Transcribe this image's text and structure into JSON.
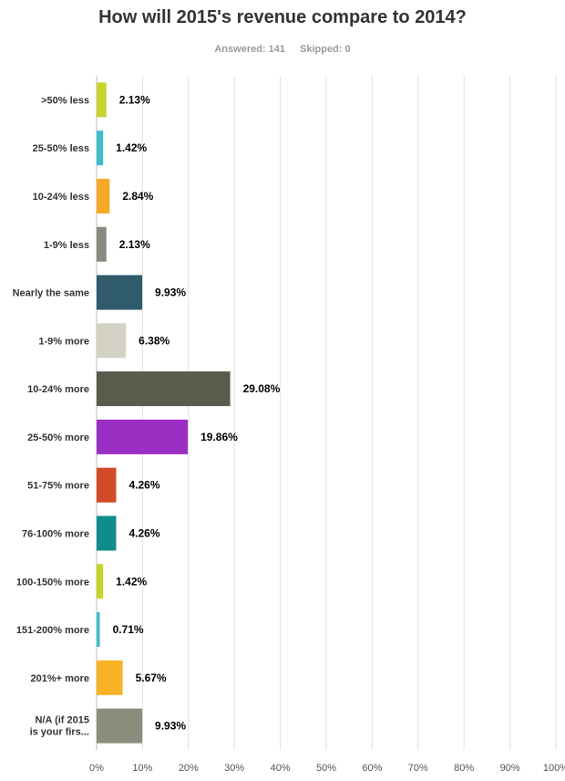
{
  "header": {
    "title": "How will 2015's revenue compare to 2014?",
    "answered": "Answered: 141",
    "skipped": "Skipped: 0"
  },
  "chart_data": {
    "type": "bar",
    "orientation": "horizontal",
    "title": "How will 2015's revenue compare to 2014?",
    "categories": [
      ">50% less",
      "25-50% less",
      "10-24% less",
      "1-9% less",
      "Nearly the same",
      "1-9% more",
      "10-24% more",
      "25-50% more",
      "51-75% more",
      "76-100% more",
      "100-150% more",
      "151-200% more",
      "201%+ more",
      [
        "N/A (if 2015",
        "is your firs..."
      ]
    ],
    "values": [
      2.13,
      1.42,
      2.84,
      2.13,
      9.93,
      6.38,
      29.08,
      19.86,
      4.26,
      4.26,
      1.42,
      0.71,
      5.67,
      9.93
    ],
    "value_labels": [
      "2.13%",
      "1.42%",
      "2.84%",
      "2.13%",
      "9.93%",
      "6.38%",
      "29.08%",
      "19.86%",
      "4.26%",
      "4.26%",
      "1.42%",
      "0.71%",
      "5.67%",
      "9.93%"
    ],
    "colors": [
      "#c6d42c",
      "#3cbfc8",
      "#f7a828",
      "#878a7f",
      "#2f5b6b",
      "#d3d2c4",
      "#5a5a4d",
      "#9b2fc4",
      "#d24a28",
      "#0e8c8c",
      "#c6d42c",
      "#3cbfc8",
      "#f7b325",
      "#8c8c7d"
    ],
    "xlim": [
      0,
      100
    ],
    "ticks": [
      0,
      10,
      20,
      30,
      40,
      50,
      60,
      70,
      80,
      90,
      100
    ],
    "tick_labels": [
      "0%",
      "10%",
      "20%",
      "30%",
      "40%",
      "50%",
      "60%",
      "70%",
      "80%",
      "90%",
      "100%"
    ],
    "grid": true
  }
}
